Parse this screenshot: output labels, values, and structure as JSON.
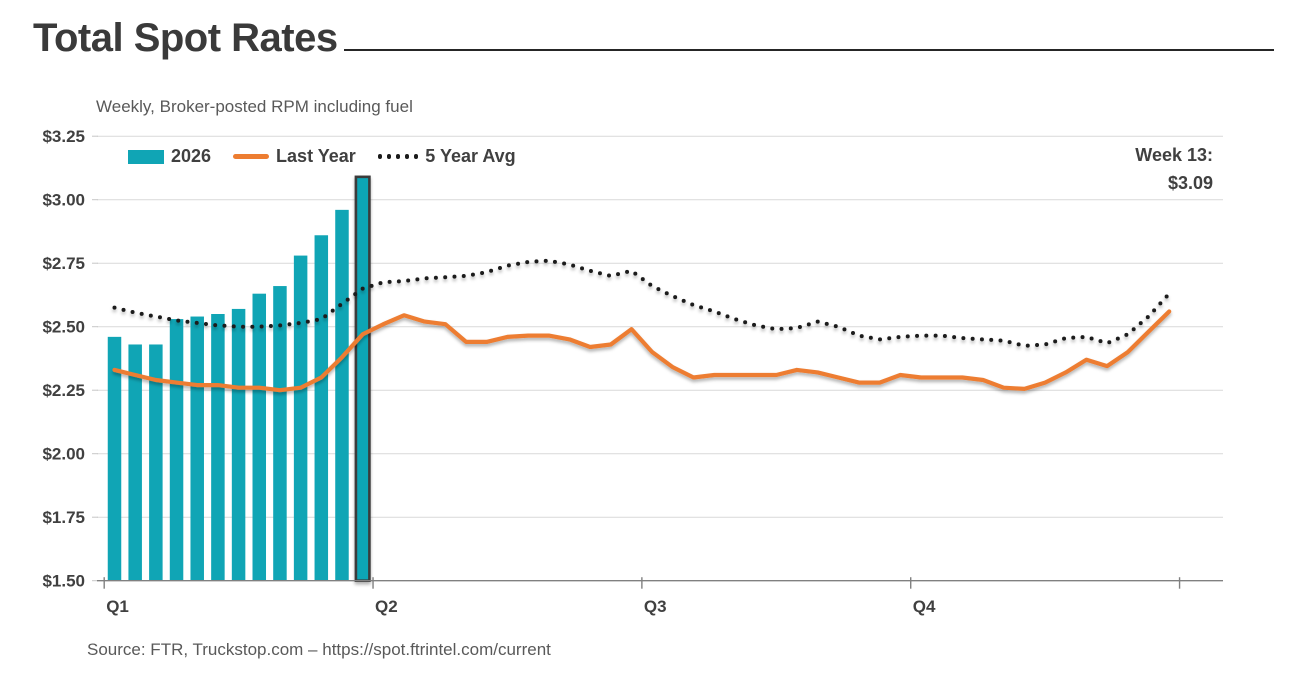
{
  "header": {
    "title": "Total Spot Rates",
    "subtitle": "Weekly, Broker-posted RPM including fuel"
  },
  "legend": {
    "items": [
      {
        "label": "2026",
        "swatch": "bar",
        "color": "#10A5B5"
      },
      {
        "label": "Last Year",
        "swatch": "line",
        "color": "#ED7D31"
      },
      {
        "label": "5 Year Avg",
        "swatch": "dots",
        "color": "#1A1A1A"
      }
    ]
  },
  "annotation": {
    "line1": "Week 13:",
    "line2": "$3.09"
  },
  "footer": {
    "source": "Source: FTR, Truckstop.com – https://spot.ftrintel.com/current"
  },
  "colors": {
    "bar": "#10A5B5",
    "bar_highlight_outline": "#3B3B3B",
    "last_year_line": "#ED7D31",
    "five_year_avg_line": "#1A1A1A",
    "gridline": "#D9D9D9",
    "axis": "#808080",
    "text_dark": "#404040",
    "text_gray": "#595959"
  },
  "chart_data": {
    "type": "bar+line combo",
    "title": "Total Spot Rates",
    "subtitle": "Weekly, Broker-posted RPM including fuel",
    "legend_position": "top-left inside plot",
    "grid": "horizontal only",
    "x_axis": {
      "unit": "week of year",
      "total_weeks": 52,
      "quarter_labels": [
        "Q1",
        "Q2",
        "Q3",
        "Q4"
      ],
      "weeks_per_quarter": 13
    },
    "y_axis": {
      "min": 1.5,
      "max": 3.25,
      "tick_step": 0.25,
      "tick_labels": [
        "$3.25",
        "$3.00",
        "$2.75",
        "$2.50",
        "$2.25",
        "$2.00",
        "$1.75",
        "$1.50"
      ],
      "unit": "dollars per mile (RPM)"
    },
    "series": [
      {
        "name": "2026",
        "type": "bar",
        "color": "#10A5B5",
        "weeks": [
          1,
          2,
          3,
          4,
          5,
          6,
          7,
          8,
          9,
          10,
          11,
          12,
          13
        ],
        "values": [
          2.46,
          2.43,
          2.43,
          2.53,
          2.54,
          2.55,
          2.57,
          2.63,
          2.66,
          2.78,
          2.86,
          2.96,
          3.09
        ],
        "highlight_week": 13
      },
      {
        "name": "Last Year",
        "type": "line",
        "color": "#ED7D31",
        "values": [
          2.33,
          2.31,
          2.29,
          2.28,
          2.27,
          2.27,
          2.26,
          2.26,
          2.25,
          2.26,
          2.3,
          2.38,
          2.47,
          2.51,
          2.545,
          2.52,
          2.51,
          2.44,
          2.44,
          2.46,
          2.465,
          2.465,
          2.45,
          2.42,
          2.43,
          2.49,
          2.4,
          2.34,
          2.3,
          2.31,
          2.31,
          2.31,
          2.31,
          2.33,
          2.32,
          2.3,
          2.28,
          2.28,
          2.31,
          2.3,
          2.3,
          2.3,
          2.29,
          2.26,
          2.255,
          2.28,
          2.32,
          2.37,
          2.345,
          2.4,
          2.48,
          2.56
        ]
      },
      {
        "name": "5 Year Avg",
        "type": "dotted_line",
        "color": "#1A1A1A",
        "values": [
          2.575,
          2.555,
          2.54,
          2.525,
          2.515,
          2.505,
          2.5,
          2.5,
          2.505,
          2.515,
          2.53,
          2.59,
          2.65,
          2.675,
          2.68,
          2.69,
          2.695,
          2.7,
          2.715,
          2.74,
          2.755,
          2.76,
          2.745,
          2.72,
          2.7,
          2.72,
          2.66,
          2.62,
          2.585,
          2.56,
          2.53,
          2.505,
          2.49,
          2.495,
          2.52,
          2.5,
          2.465,
          2.45,
          2.46,
          2.465,
          2.465,
          2.455,
          2.45,
          2.445,
          2.425,
          2.43,
          2.455,
          2.46,
          2.435,
          2.47,
          2.54,
          2.63
        ]
      }
    ],
    "callout": {
      "week": 13,
      "value": 3.09,
      "text": "Week 13: $3.09"
    }
  }
}
